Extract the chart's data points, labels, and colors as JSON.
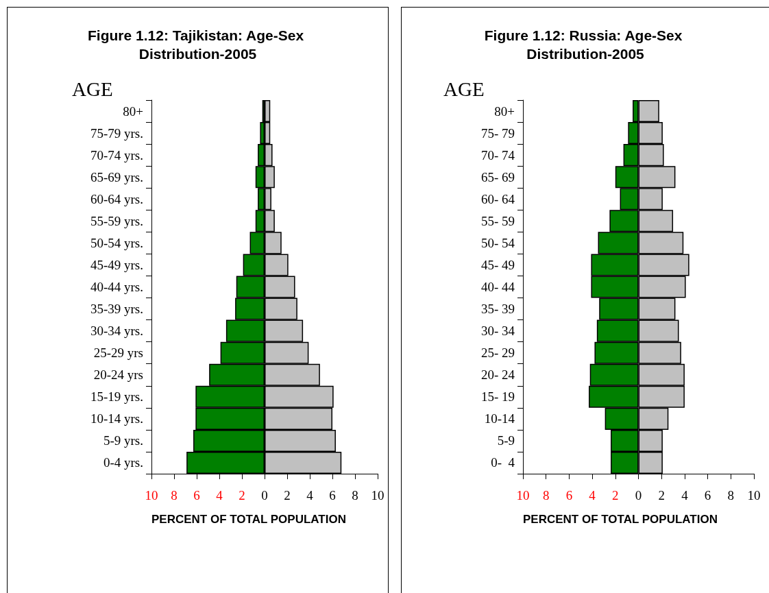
{
  "chart_data": [
    {
      "type": "bar",
      "title": "Figure 1.12: Tajikistan: Age-Sex Distribution-2005",
      "ylabel": "AGE",
      "xlabel": "PERCENT OF TOTAL POPULATION",
      "orientation": "horizontal",
      "stacked": true,
      "categories": [
        "80+",
        "75-79 yrs.",
        "70-74 yrs.",
        "65-69 yrs.",
        "60-64 yrs.",
        "55-59 yrs.",
        "50-54 yrs.",
        "45-49 yrs.",
        "40-44 yrs.",
        "35-39 yrs.",
        "30-34 yrs.",
        "25-29 yrs",
        "20-24 yrs",
        "15-19 yrs.",
        "10-14 yrs.",
        "5-9 yrs.",
        "0-4 yrs."
      ],
      "xlim": [
        -10,
        10
      ],
      "xticks": [
        {
          "value": -10,
          "label": "10"
        },
        {
          "value": -8,
          "label": "8"
        },
        {
          "value": -6,
          "label": "6"
        },
        {
          "value": -4,
          "label": "4"
        },
        {
          "value": -2,
          "label": "2"
        },
        0,
        2,
        4,
        6,
        8,
        10
      ],
      "series": [
        {
          "color": "#008000",
          "values": [
            -0.2,
            -0.4,
            -0.6,
            -0.8,
            -0.6,
            -0.8,
            -1.3,
            -1.9,
            -2.5,
            -2.6,
            -3.4,
            -3.9,
            -4.9,
            -6.1,
            -6.1,
            -6.3,
            -6.9
          ]
        },
        {
          "color": "#c0c0c0",
          "values": [
            0.5,
            0.5,
            0.7,
            0.9,
            0.6,
            0.9,
            1.5,
            2.1,
            2.7,
            2.9,
            3.4,
            3.9,
            4.9,
            6.1,
            6.0,
            6.3,
            6.8
          ]
        }
      ]
    },
    {
      "type": "bar",
      "title": "Figure 1.12: Russia: Age-Sex Distribution-2005",
      "ylabel": "AGE",
      "xlabel": "PERCENT OF TOTAL POPULATION",
      "orientation": "horizontal",
      "stacked": true,
      "categories": [
        "80+",
        "75- 79",
        "70- 74",
        "65- 69",
        "60- 64",
        "55- 59",
        "50- 54",
        "45- 49",
        "40- 44",
        "35- 39",
        "30- 34",
        "25- 29",
        "20- 24",
        "15- 19",
        "10-14",
        "5-9",
        "0-  4"
      ],
      "xlim": [
        -10,
        10
      ],
      "xticks": [
        {
          "value": -10,
          "label": "10"
        },
        {
          "value": -8,
          "label": "8"
        },
        {
          "value": -6,
          "label": "6"
        },
        {
          "value": -4,
          "label": "4"
        },
        {
          "value": -2,
          "label": "2"
        },
        0,
        2,
        4,
        6,
        8,
        10
      ],
      "series": [
        {
          "color": "#008000",
          "values": [
            -0.5,
            -0.9,
            -1.3,
            -2.0,
            -1.6,
            -2.5,
            -3.5,
            -4.1,
            -4.1,
            -3.4,
            -3.6,
            -3.8,
            -4.2,
            -4.3,
            -2.9,
            -2.4,
            -2.4
          ]
        },
        {
          "color": "#c0c0c0",
          "values": [
            1.8,
            2.1,
            2.2,
            3.2,
            2.1,
            3.0,
            3.9,
            4.4,
            4.1,
            3.2,
            3.5,
            3.7,
            4.0,
            4.0,
            2.6,
            2.1,
            2.1
          ]
        }
      ]
    }
  ]
}
